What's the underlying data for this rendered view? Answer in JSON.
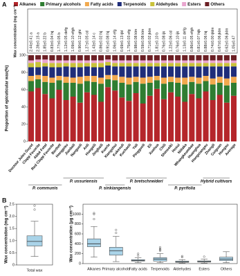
{
  "panels": [
    "A",
    "B"
  ],
  "chart_data": [
    {
      "type": "stacked_bar",
      "ylabel": "Proportion of epicuticular wax(%)",
      "wax_title": "Wax concentration (mg cm⁻²)",
      "ylim": [
        0,
        100
      ],
      "yticks": [
        0,
        20,
        40,
        60,
        80,
        100
      ],
      "categories": [
        "Doctour Jules Guyot",
        "Clapp Favorite",
        "Abbé Fetel",
        "Red Clapp Favorite",
        "Bartlett",
        "Hongpisu",
        "Jianbali",
        "Nanguoli",
        "Anli",
        "Huagaili",
        "Jingbaili",
        "Kuerle",
        "Xiangshui",
        "Kukesuli",
        "Kuchaoli",
        "Yali",
        "Pingguoli",
        "Eli",
        "Xuehua",
        "Chili",
        "Shinseiki",
        "Hosui",
        "Niitaka",
        "Whangkeumbae",
        "Huanghua",
        "Hongxiangsu",
        "Zhongli",
        "Cuiguan",
        "Hongsu",
        "Average"
      ],
      "wax_labels": [
        "2.44±0.41 a",
        "2.28±0.15 a",
        "1.85±0.22 b",
        "0.83±0.04 hij",
        "1.77±0.05 b",
        "1.12±0.05 defg",
        "1.09±0.10 efgh",
        "0.90±0.12 ghi",
        "1.27±0.05 cd",
        "1.43±0.14 c",
        "0.86±0.02 hij",
        "0.91±0.08 hij",
        "1.06±0.14 efg",
        "0.69±0.13 ijkl",
        "1.75±0.03 efg",
        "0.98±0.08 klm",
        "0.59±0.08 klm",
        "0.71±0.02 jklm",
        "1.81±0.10 b",
        "0.76±0.08 ijk",
        "1.22±0.06 cd",
        "0.76±0.10 ijk",
        "1.13±0.11 defg",
        "0.86±0.05 efgh",
        "0.81±0.07 hijk",
        "0.88±0.06 hij",
        "0.74±0.00 ijklm",
        "0.67±0.06 jklm",
        "0.62±0.06 jklm",
        "1.05±0.47"
      ],
      "groups": [
        "P. communis",
        "P. ussuriensis",
        "P. sinkiangensis",
        "P. bretschneideri",
        "P. pyrifolia",
        "Hybrid cultivars"
      ],
      "series": [
        {
          "name": "Alkanes",
          "color": "#b5262b",
          "values": [
            58,
            62,
            55,
            50,
            60,
            48,
            52,
            45,
            57,
            54,
            46,
            63,
            59,
            51,
            47,
            56,
            44,
            53,
            61,
            49,
            57,
            52,
            46,
            55,
            50,
            58,
            48,
            54,
            45,
            53
          ]
        },
        {
          "name": "Primary alcohols",
          "color": "#2f7d32",
          "values": [
            12,
            10,
            14,
            18,
            11,
            20,
            16,
            22,
            13,
            15,
            21,
            9,
            12,
            17,
            19,
            13,
            23,
            15,
            10,
            18,
            12,
            16,
            20,
            14,
            17,
            12,
            18,
            14,
            20,
            15
          ]
        },
        {
          "name": "Fatty acids",
          "color": "#f1a94e",
          "values": [
            6,
            5,
            7,
            6,
            5,
            7,
            6,
            8,
            6,
            7,
            7,
            5,
            6,
            7,
            8,
            6,
            7,
            7,
            5,
            7,
            6,
            6,
            8,
            6,
            7,
            6,
            7,
            7,
            8,
            7
          ]
        },
        {
          "name": "Terpenoids",
          "color": "#1f2d7a",
          "values": [
            10,
            9,
            11,
            12,
            10,
            12,
            12,
            11,
            11,
            10,
            12,
            11,
            10,
            12,
            13,
            12,
            13,
            12,
            11,
            13,
            12,
            13,
            13,
            12,
            13,
            11,
            14,
            12,
            14,
            12
          ]
        },
        {
          "name": "Aldehydes",
          "color": "#c9c23a",
          "values": [
            5,
            6,
            4,
            5,
            5,
            4,
            5,
            5,
            4,
            5,
            5,
            4,
            4,
            4,
            4,
            4,
            4,
            4,
            4,
            4,
            4,
            4,
            4,
            4,
            4,
            4,
            4,
            4,
            4,
            4
          ]
        },
        {
          "name": "Esters",
          "color": "#e9a6cf",
          "values": [
            3,
            3,
            4,
            3,
            3,
            3,
            3,
            3,
            3,
            3,
            3,
            3,
            3,
            3,
            3,
            3,
            3,
            3,
            3,
            3,
            3,
            3,
            3,
            3,
            3,
            3,
            3,
            3,
            3,
            3
          ]
        },
        {
          "name": "Others",
          "color": "#6b1f24",
          "values": [
            6,
            5,
            5,
            6,
            6,
            6,
            6,
            6,
            6,
            6,
            6,
            5,
            6,
            6,
            6,
            6,
            6,
            6,
            6,
            6,
            6,
            6,
            6,
            6,
            6,
            6,
            6,
            6,
            6,
            6
          ]
        }
      ]
    },
    {
      "type": "box",
      "ylabel": "Wax concentration (mg cm⁻²)",
      "color": "#a9d3e8",
      "ylim": [
        0,
        2.5
      ],
      "yticks": [
        0,
        {
          "value": 0.5,
          "label": "0.5"
        },
        {
          "value": 1,
          "label": "1.0"
        },
        {
          "value": 1.5,
          "label": "1.5"
        },
        {
          "value": 2,
          "label": "2.0"
        },
        {
          "value": 2.5,
          "label": "2.5"
        }
      ],
      "boxes": [
        {
          "name": "Total wax",
          "min": 0.35,
          "q1": 0.78,
          "median": 0.97,
          "q3": 1.2,
          "max": 1.8,
          "outliers": [
            2.28,
            2.44
          ]
        }
      ]
    },
    {
      "type": "box",
      "ylabel": "Wax concentration (μg cm⁻²)",
      "color": "#a9d3e8",
      "ylim": [
        0,
        1200
      ],
      "yticks": [
        0,
        200,
        400,
        600,
        800,
        1000
      ],
      "boxes": [
        {
          "name": "Alkanes",
          "min": 130,
          "q1": 340,
          "median": 400,
          "q3": 500,
          "max": 750,
          "outliers": [
            900,
            1000,
            1020
          ]
        },
        {
          "name": "Primary alcohols",
          "min": 40,
          "q1": 170,
          "median": 260,
          "q3": 330,
          "max": 550,
          "outliers": [
            620,
            680
          ]
        },
        {
          "name": "Fatty acids",
          "min": 20,
          "q1": 50,
          "median": 65,
          "q3": 80,
          "max": 120,
          "outliers": [
            160,
            200
          ]
        },
        {
          "name": "Terpenoids",
          "min": 20,
          "q1": 50,
          "median": 90,
          "q3": 120,
          "max": 200,
          "outliers": [
            260,
            280,
            300,
            330
          ]
        },
        {
          "name": "Aldehydes",
          "min": 10,
          "q1": 25,
          "median": 35,
          "q3": 50,
          "max": 80,
          "outliers": [
            130,
            150
          ]
        },
        {
          "name": "Esters",
          "min": 10,
          "q1": 30,
          "median": 40,
          "q3": 55,
          "max": 90,
          "outliers": [
            140
          ]
        },
        {
          "name": "Others",
          "min": 20,
          "q1": 60,
          "median": 90,
          "q3": 130,
          "max": 240,
          "outliers": []
        }
      ]
    }
  ]
}
